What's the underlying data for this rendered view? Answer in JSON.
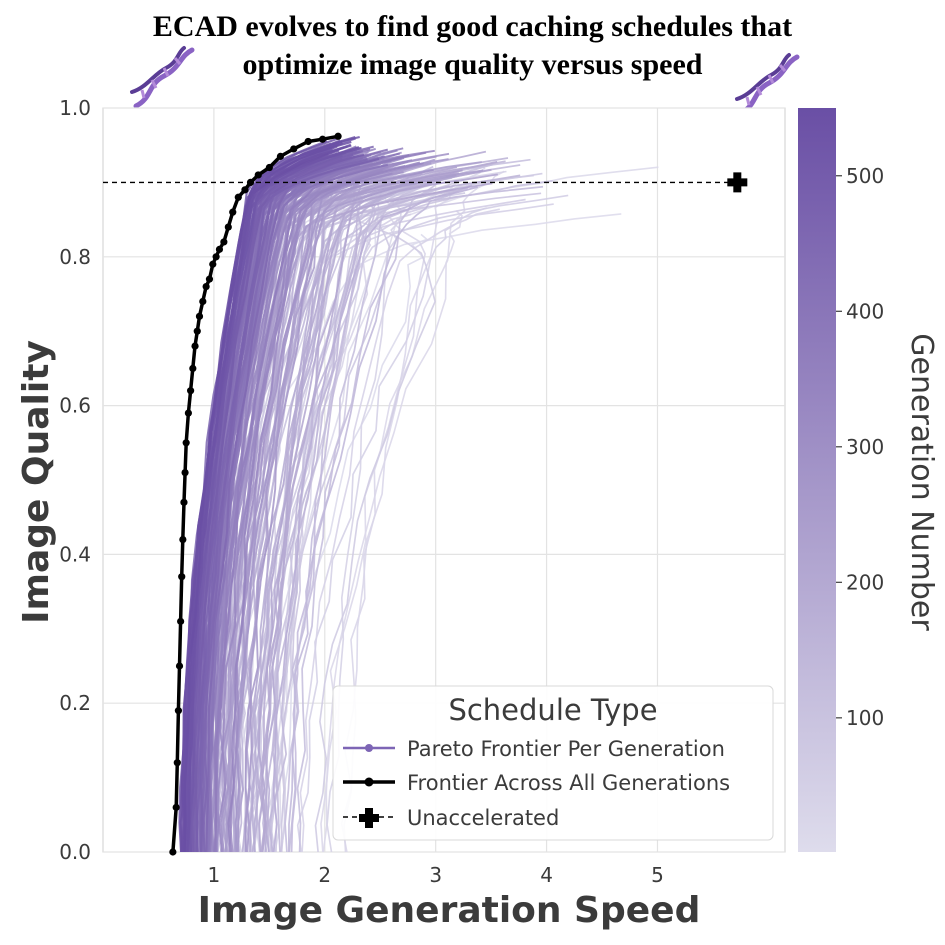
{
  "title": {
    "line1": "ECAD evolves to find good caching schedules that",
    "line2": "optimize image quality versus speed"
  },
  "colors": {
    "purple_dark": "#6a4fa5",
    "purple_light": "#dedcec",
    "frontier": "#000000",
    "reference_line": "#000000",
    "grid": "#e3e3e3"
  },
  "icons": {
    "title_left": "dna-icon",
    "title_right": "dna-icon"
  },
  "chart_data": {
    "type": "line",
    "xlabel": "Image Generation Speed",
    "ylabel": "Image Quality",
    "xlim": [
      0.0,
      6.15
    ],
    "ylim": [
      0.0,
      1.0
    ],
    "xticks": [
      1,
      2,
      3,
      4,
      5
    ],
    "yticks": [
      0.0,
      0.2,
      0.4,
      0.6,
      0.8,
      1.0
    ],
    "xtick_labels": [
      "1",
      "2",
      "3",
      "4",
      "5"
    ],
    "ytick_labels": [
      "0.0",
      "0.2",
      "0.4",
      "0.6",
      "0.8",
      "1.0"
    ],
    "grid": true,
    "colorbar": {
      "label": "Generation Number",
      "range": [
        1,
        550
      ],
      "ticks": [
        100,
        200,
        300,
        400,
        500
      ],
      "tick_labels": [
        "100",
        "200",
        "300",
        "400",
        "500"
      ],
      "colormap": "light lavender to purple"
    },
    "legend": {
      "title": "Schedule Type",
      "placement": "lower right",
      "entries": [
        "Pareto Frontier Per Generation",
        "Frontier Across All Generations",
        "Unaccelerated"
      ]
    },
    "unaccelerated_point": {
      "x": 5.72,
      "y": 0.9
    },
    "reference_line_y": 0.9,
    "series": [
      {
        "name": "Frontier Across All Generations",
        "x": [
          0.63,
          0.66,
          0.67,
          0.68,
          0.69,
          0.7,
          0.71,
          0.72,
          0.73,
          0.74,
          0.75,
          0.77,
          0.79,
          0.81,
          0.83,
          0.85,
          0.87,
          0.9,
          0.93,
          0.96,
          0.99,
          1.02,
          1.05,
          1.09,
          1.13,
          1.17,
          1.22,
          1.28,
          1.33,
          1.4,
          1.5,
          1.6,
          1.72,
          1.85,
          1.98,
          2.12
        ],
        "y": [
          0.0,
          0.06,
          0.12,
          0.19,
          0.25,
          0.31,
          0.37,
          0.42,
          0.47,
          0.51,
          0.55,
          0.59,
          0.62,
          0.65,
          0.68,
          0.7,
          0.72,
          0.74,
          0.76,
          0.77,
          0.79,
          0.8,
          0.81,
          0.82,
          0.84,
          0.86,
          0.88,
          0.89,
          0.9,
          0.91,
          0.92,
          0.935,
          0.945,
          0.955,
          0.958,
          0.962
        ]
      }
    ],
    "generation_frontiers_note": "About 200 per-generation Pareto frontier curves shaded by generation number; early generations extend to speeds up to about 5.6, later generations converge toward the black frontier."
  }
}
